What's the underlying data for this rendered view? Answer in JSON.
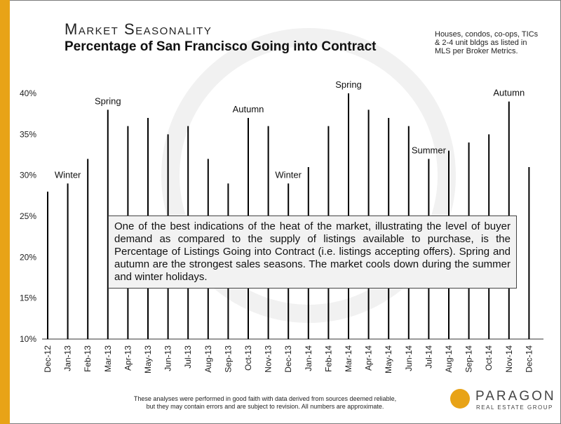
{
  "header": {
    "title": "Market Seasonality",
    "subtitle": "Percentage of San Francisco Going into Contract",
    "note": "Houses, condos, co-ops, TICs & 2-4 unit bldgs as listed in MLS per Broker Metrics."
  },
  "textbox": "One of the best indications of the heat of the market, illustrating the level of buyer demand as compared to the supply of listings available to purchase, is the Percentage of Listings Going into Contract (i.e. listings accepting offers). Spring and autumn are the strongest sales seasons. The market cools down during the summer and winter holidays.",
  "footer": {
    "disclaimer": "These analyses were performed in good faith with data derived from sources deemed reliable, but they may contain errors and are subject to revision. All numbers are approximate.",
    "logo_name": "PARAGON",
    "logo_tag": "REAL ESTATE GROUP"
  },
  "colors": {
    "accent": "#e8a317",
    "bar": "#000000"
  },
  "chart_data": {
    "type": "bar",
    "categories": [
      "Dec-12",
      "Jan-13",
      "Feb-13",
      "Mar-13",
      "Apr-13",
      "May-13",
      "Jun-13",
      "Jul-13",
      "Aug-13",
      "Sep-13",
      "Oct-13",
      "Nov-13",
      "Dec-13",
      "Jan-14",
      "Feb-14",
      "Mar-14",
      "Apr-14",
      "May-14",
      "Jun-14",
      "Jul-14",
      "Aug-14",
      "Sep-14",
      "Oct-14",
      "Nov-14",
      "Dec-14"
    ],
    "values": [
      28,
      29,
      32,
      38,
      36,
      37,
      35,
      36,
      32,
      29,
      37,
      36,
      29,
      31,
      36,
      40,
      38,
      37,
      36,
      32,
      33,
      34,
      35,
      39,
      31
    ],
    "ylim": [
      10,
      40
    ],
    "yticks": [
      "10%",
      "15%",
      "20%",
      "25%",
      "30%",
      "35%",
      "40%"
    ],
    "annotations": [
      {
        "label": "Winter",
        "index": 1
      },
      {
        "label": "Spring",
        "index": 3
      },
      {
        "label": "Autumn",
        "index": 10
      },
      {
        "label": "Winter",
        "index": 12
      },
      {
        "label": "Spring",
        "index": 15
      },
      {
        "label": "Summer",
        "index": 19
      },
      {
        "label": "Autumn",
        "index": 23
      }
    ],
    "grid": false
  }
}
